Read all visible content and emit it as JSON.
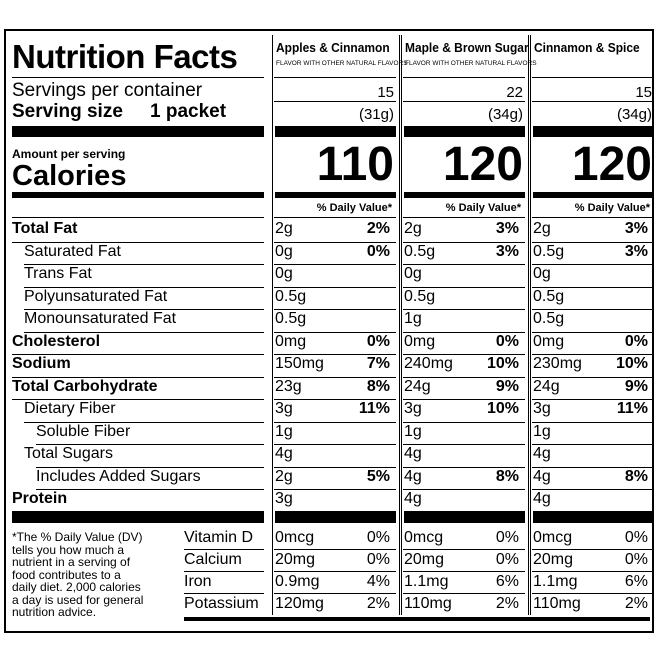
{
  "title": "Nutrition Facts",
  "servings_label": "Servings per container",
  "serving_size_label": "Serving size",
  "serving_size_value": "1 packet",
  "amount_per_serving": "Amount per serving",
  "calories_label": "Calories",
  "flavor_note": "FLAVOR WITH OTHER NATURAL FLAVORS",
  "dv_header": "% Daily Value*",
  "columns": [
    {
      "name": "Apples & Cinnamon",
      "note": "FLAVOR WITH OTHER NATURAL FLAVORS",
      "servings": "15",
      "serving_weight": "(31g)",
      "calories": "110"
    },
    {
      "name": "Maple & Brown Sugar",
      "note": "FLAVOR WITH OTHER NATURAL FLAVORS",
      "servings": "22",
      "serving_weight": "(34g)",
      "calories": "120"
    },
    {
      "name": "Cinnamon & Spice",
      "note": "",
      "servings": "15",
      "serving_weight": "(34g)",
      "calories": "120"
    }
  ],
  "nutrients": [
    {
      "label": "Total Fat",
      "values": [
        [
          "2g",
          "2%"
        ],
        [
          "2g",
          "3%"
        ],
        [
          "2g",
          "3%"
        ]
      ]
    },
    {
      "label": "Saturated Fat",
      "values": [
        [
          "0g",
          "0%"
        ],
        [
          "0.5g",
          "3%"
        ],
        [
          "0.5g",
          "3%"
        ]
      ]
    },
    {
      "label": "Trans Fat",
      "values": [
        [
          "0g",
          ""
        ],
        [
          "0g",
          ""
        ],
        [
          "0g",
          ""
        ]
      ]
    },
    {
      "label": "Polyunsaturated Fat",
      "values": [
        [
          "0.5g",
          ""
        ],
        [
          "0.5g",
          ""
        ],
        [
          "0.5g",
          ""
        ]
      ]
    },
    {
      "label": "Monounsaturated Fat",
      "values": [
        [
          "0.5g",
          ""
        ],
        [
          "1g",
          ""
        ],
        [
          "0.5g",
          ""
        ]
      ]
    },
    {
      "label": "Cholesterol",
      "values": [
        [
          "0mg",
          "0%"
        ],
        [
          "0mg",
          "0%"
        ],
        [
          "0mg",
          "0%"
        ]
      ]
    },
    {
      "label": "Sodium",
      "values": [
        [
          "150mg",
          "7%"
        ],
        [
          "240mg",
          "10%"
        ],
        [
          "230mg",
          "10%"
        ]
      ]
    },
    {
      "label": "Total Carbohydrate",
      "values": [
        [
          "23g",
          "8%"
        ],
        [
          "24g",
          "9%"
        ],
        [
          "24g",
          "9%"
        ]
      ]
    },
    {
      "label": "Dietary Fiber",
      "values": [
        [
          "3g",
          "11%"
        ],
        [
          "3g",
          "10%"
        ],
        [
          "3g",
          "11%"
        ]
      ]
    },
    {
      "label": "Soluble Fiber",
      "values": [
        [
          "1g",
          ""
        ],
        [
          "1g",
          ""
        ],
        [
          "1g",
          ""
        ]
      ]
    },
    {
      "label": "Total Sugars",
      "values": [
        [
          "4g",
          ""
        ],
        [
          "4g",
          ""
        ],
        [
          "4g",
          ""
        ]
      ]
    },
    {
      "label": "Includes Added Sugars",
      "values": [
        [
          "2g",
          "5%"
        ],
        [
          "4g",
          "8%"
        ],
        [
          "4g",
          "8%"
        ]
      ]
    },
    {
      "label": "Protein",
      "values": [
        [
          "3g",
          ""
        ],
        [
          "4g",
          ""
        ],
        [
          "4g",
          ""
        ]
      ]
    }
  ],
  "footnote": [
    "*The % Daily Value (DV)",
    "tells you how much a",
    "nutrient in a serving of",
    "food contributes to a",
    "daily diet. 2,000 calories",
    "a day is used for general",
    "nutrition advice."
  ],
  "vitamins": [
    {
      "label": "Vitamin D",
      "values": [
        [
          "0mcg",
          "0%"
        ],
        [
          "0mcg",
          "0%"
        ],
        [
          "0mcg",
          "0%"
        ]
      ]
    },
    {
      "label": "Calcium",
      "values": [
        [
          "20mg",
          "0%"
        ],
        [
          "20mg",
          "0%"
        ],
        [
          "20mg",
          "0%"
        ]
      ]
    },
    {
      "label": "Iron",
      "values": [
        [
          "0.9mg",
          "4%"
        ],
        [
          "1.1mg",
          "6%"
        ],
        [
          "1.1mg",
          "6%"
        ]
      ]
    },
    {
      "label": "Potassium",
      "values": [
        [
          "120mg",
          "2%"
        ],
        [
          "110mg",
          "2%"
        ],
        [
          "110mg",
          "2%"
        ]
      ]
    }
  ]
}
